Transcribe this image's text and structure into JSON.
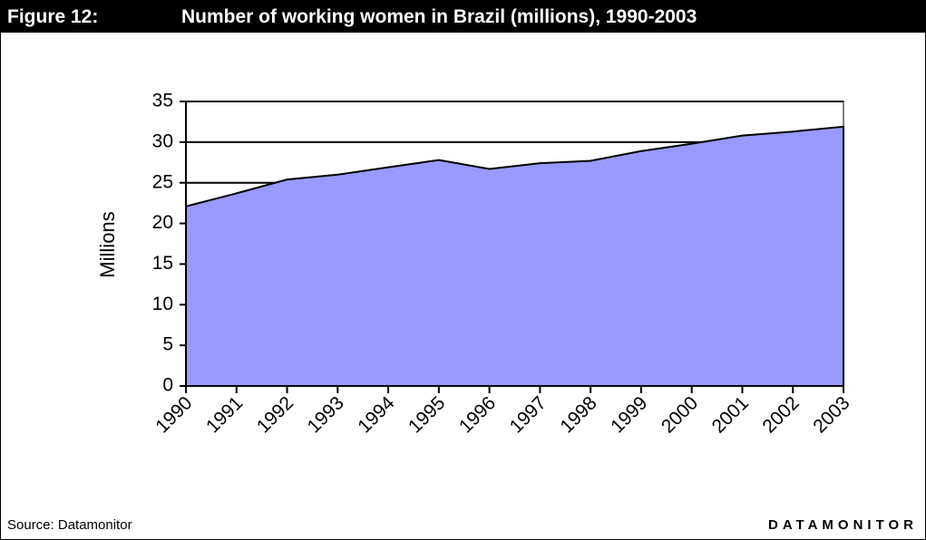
{
  "figure_label": "Figure 12:",
  "source": "Source: Datamonitor",
  "brand": "DATAMONITOR",
  "chart_data": {
    "type": "area",
    "title": "Number of working women in Brazil (millions), 1990-2003",
    "y_label": "Millions",
    "categories": [
      "1990",
      "1991",
      "1992",
      "1993",
      "1994",
      "1995",
      "1996",
      "1997",
      "1998",
      "1999",
      "2000",
      "2001",
      "2002",
      "2003"
    ],
    "values": [
      22.1,
      23.7,
      25.4,
      26.0,
      26.9,
      27.8,
      26.7,
      27.4,
      27.7,
      28.9,
      29.8,
      30.8,
      31.3,
      31.9
    ],
    "color": "#9999ff",
    "ylim": [
      0,
      35
    ],
    "yticks": [
      0,
      5,
      10,
      15,
      20,
      25,
      30,
      35
    ],
    "grid": true
  }
}
